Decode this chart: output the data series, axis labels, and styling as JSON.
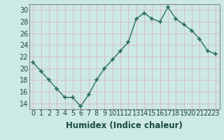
{
  "x": [
    0,
    1,
    2,
    3,
    4,
    5,
    6,
    7,
    8,
    9,
    10,
    11,
    12,
    13,
    14,
    15,
    16,
    17,
    18,
    19,
    20,
    21,
    22,
    23
  ],
  "y": [
    21.0,
    19.5,
    18.0,
    16.5,
    15.0,
    15.0,
    13.5,
    15.5,
    18.0,
    20.0,
    21.5,
    23.0,
    24.5,
    28.5,
    29.5,
    28.5,
    28.0,
    30.5,
    28.5,
    27.5,
    26.5,
    25.0,
    23.0,
    22.5
  ],
  "line_color": "#2e6e5e",
  "marker": "+",
  "marker_size": 5,
  "line_width": 1.0,
  "bg_color": "#cce9e5",
  "grid_color": "#d8b8b8",
  "xlabel": "Humidex (Indice chaleur)",
  "ylim": [
    13,
    31
  ],
  "xlim": [
    -0.5,
    23.5
  ],
  "yticks": [
    14,
    16,
    18,
    20,
    22,
    24,
    26,
    28,
    30
  ],
  "xtick_labels": [
    "0",
    "1",
    "2",
    "3",
    "4",
    "5",
    "6",
    "7",
    "8",
    "9",
    "10",
    "11",
    "12",
    "13",
    "14",
    "15",
    "16",
    "17",
    "18",
    "19",
    "20",
    "21",
    "22",
    "23"
  ],
  "xlabel_fontsize": 8.5,
  "tick_fontsize": 7,
  "spine_color": "#888888"
}
